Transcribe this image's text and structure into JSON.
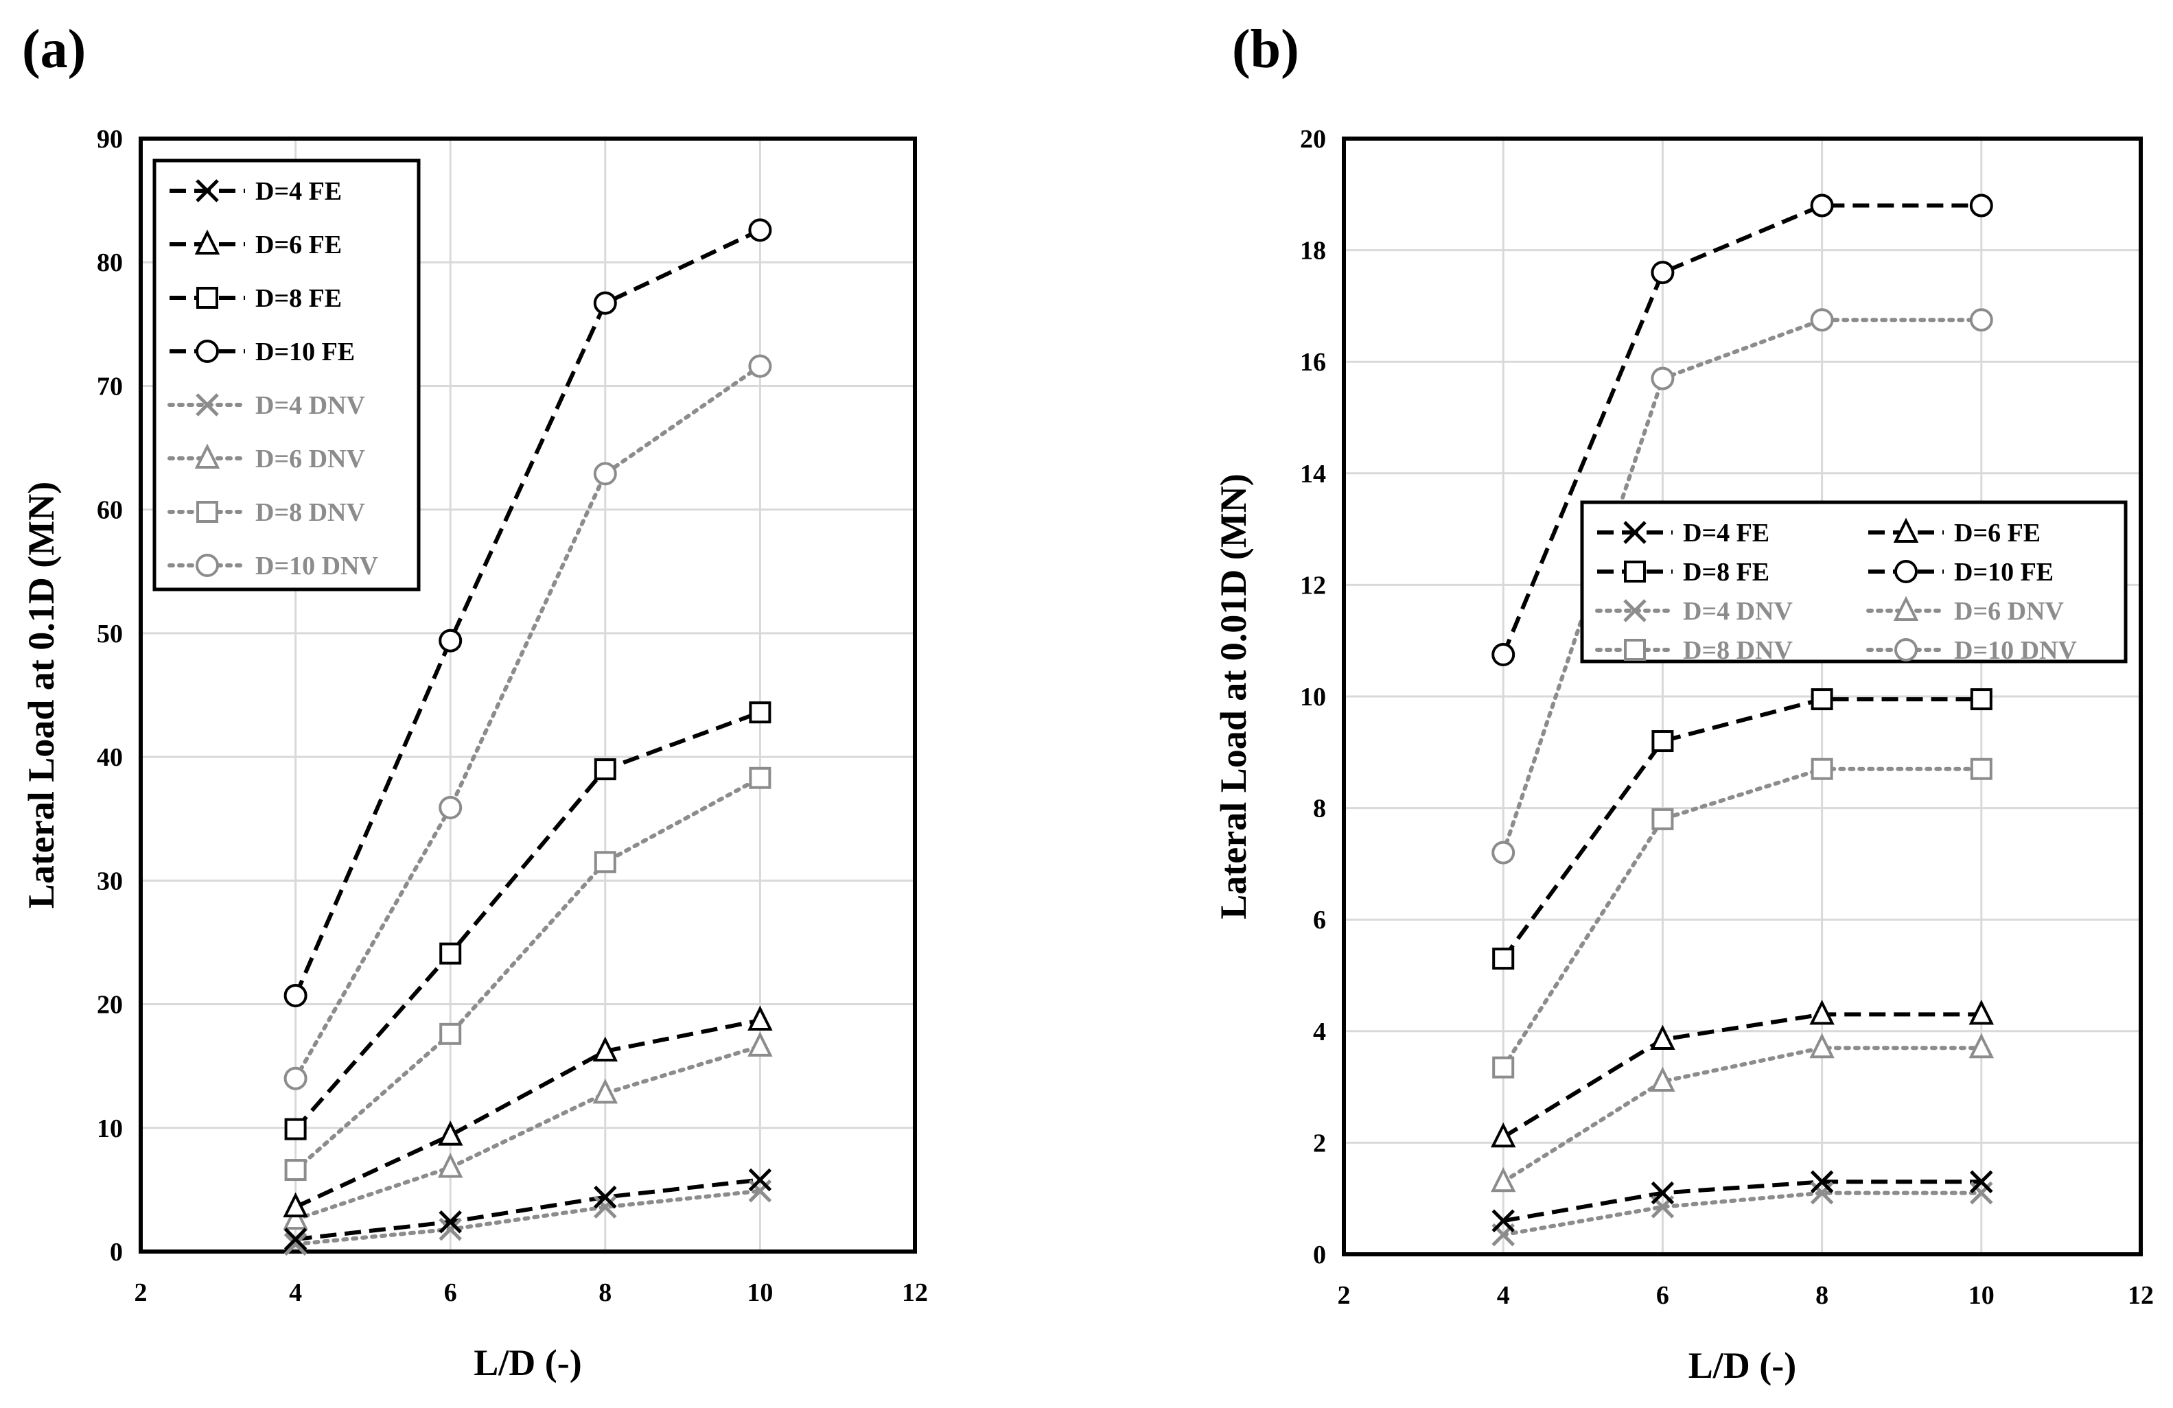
{
  "chart_data": [
    {
      "type": "line",
      "panel_label": "(a)",
      "xlabel": "L/D (-)",
      "ylabel": "Lateral  Load at 0.1D (MN)",
      "xlim": [
        2,
        12
      ],
      "ylim": [
        0,
        90
      ],
      "xticks": [
        "2",
        "4",
        "6",
        "8",
        "10",
        "12"
      ],
      "yticks": [
        "0",
        "10",
        "20",
        "30",
        "40",
        "50",
        "60",
        "70",
        "80",
        "90"
      ],
      "grid": true,
      "legend_position": "top-left",
      "legend_columns": 1,
      "series": [
        {
          "name": "D=4 FE",
          "marker": "x",
          "style": "dashed",
          "color": "#000000",
          "x": [
            4,
            6,
            8,
            10
          ],
          "y": [
            1.0,
            2.4,
            4.4,
            5.8
          ]
        },
        {
          "name": "D=6 FE",
          "marker": "triangle",
          "style": "dashed",
          "color": "#000000",
          "x": [
            4,
            6,
            8,
            10
          ],
          "y": [
            3.6,
            9.4,
            16.2,
            18.7
          ]
        },
        {
          "name": "D=8 FE",
          "marker": "square",
          "style": "dashed",
          "color": "#000000",
          "x": [
            4,
            6,
            8,
            10
          ],
          "y": [
            9.9,
            24.1,
            39.0,
            43.6
          ]
        },
        {
          "name": "D=10 FE",
          "marker": "circle",
          "style": "dashed",
          "color": "#000000",
          "x": [
            4,
            6,
            8,
            10
          ],
          "y": [
            20.7,
            49.4,
            76.7,
            82.6
          ]
        },
        {
          "name": "D=4 DNV",
          "marker": "x",
          "style": "dotted",
          "color": "#8c8c8c",
          "x": [
            4,
            6,
            8,
            10
          ],
          "y": [
            0.6,
            1.8,
            3.6,
            4.9
          ]
        },
        {
          "name": "D=6 DNV",
          "marker": "triangle",
          "style": "dotted",
          "color": "#8c8c8c",
          "x": [
            4,
            6,
            8,
            10
          ],
          "y": [
            2.6,
            6.8,
            12.8,
            16.6
          ]
        },
        {
          "name": "D=8 DNV",
          "marker": "square",
          "style": "dotted",
          "color": "#8c8c8c",
          "x": [
            4,
            6,
            8,
            10
          ],
          "y": [
            6.6,
            17.6,
            31.5,
            38.3
          ]
        },
        {
          "name": "D=10 DNV",
          "marker": "circle",
          "style": "dotted",
          "color": "#8c8c8c",
          "x": [
            4,
            6,
            8,
            10
          ],
          "y": [
            14.0,
            35.9,
            62.9,
            71.6
          ]
        }
      ]
    },
    {
      "type": "line",
      "panel_label": "(b)",
      "xlabel": "L/D (-)",
      "ylabel": "Lateral  Load at 0.01D (MN)",
      "xlim": [
        2,
        12
      ],
      "ylim": [
        0,
        20
      ],
      "xticks": [
        "2",
        "4",
        "6",
        "8",
        "10",
        "12"
      ],
      "yticks": [
        "0",
        "2",
        "4",
        "6",
        "8",
        "10",
        "12",
        "14",
        "16",
        "18",
        "20"
      ],
      "grid": true,
      "legend_position": "right",
      "legend_columns": 2,
      "series": [
        {
          "name": "D=4 FE",
          "marker": "x",
          "style": "dashed",
          "color": "#000000",
          "x": [
            4,
            6,
            8,
            10
          ],
          "y": [
            0.6,
            1.1,
            1.3,
            1.3
          ]
        },
        {
          "name": "D=6 FE",
          "marker": "triangle",
          "style": "dashed",
          "color": "#000000",
          "x": [
            4,
            6,
            8,
            10
          ],
          "y": [
            2.1,
            3.85,
            4.3,
            4.3
          ]
        },
        {
          "name": "D=8 FE",
          "marker": "square",
          "style": "dashed",
          "color": "#000000",
          "x": [
            4,
            6,
            8,
            10
          ],
          "y": [
            5.3,
            9.2,
            9.95,
            9.95
          ]
        },
        {
          "name": "D=10 FE",
          "marker": "circle",
          "style": "dashed",
          "color": "#000000",
          "x": [
            4,
            6,
            8,
            10
          ],
          "y": [
            10.75,
            17.6,
            18.8,
            18.8
          ]
        },
        {
          "name": "D=4 DNV",
          "marker": "x",
          "style": "dotted",
          "color": "#8c8c8c",
          "x": [
            4,
            6,
            8,
            10
          ],
          "y": [
            0.35,
            0.85,
            1.1,
            1.1
          ]
        },
        {
          "name": "D=6 DNV",
          "marker": "triangle",
          "style": "dotted",
          "color": "#8c8c8c",
          "x": [
            4,
            6,
            8,
            10
          ],
          "y": [
            1.3,
            3.1,
            3.7,
            3.7
          ]
        },
        {
          "name": "D=8 DNV",
          "marker": "square",
          "style": "dotted",
          "color": "#8c8c8c",
          "x": [
            4,
            6,
            8,
            10
          ],
          "y": [
            3.35,
            7.8,
            8.7,
            8.7
          ]
        },
        {
          "name": "D=10 DNV",
          "marker": "circle",
          "style": "dotted",
          "color": "#8c8c8c",
          "x": [
            4,
            6,
            8,
            10
          ],
          "y": [
            7.2,
            15.7,
            16.75,
            16.75
          ]
        }
      ]
    }
  ]
}
